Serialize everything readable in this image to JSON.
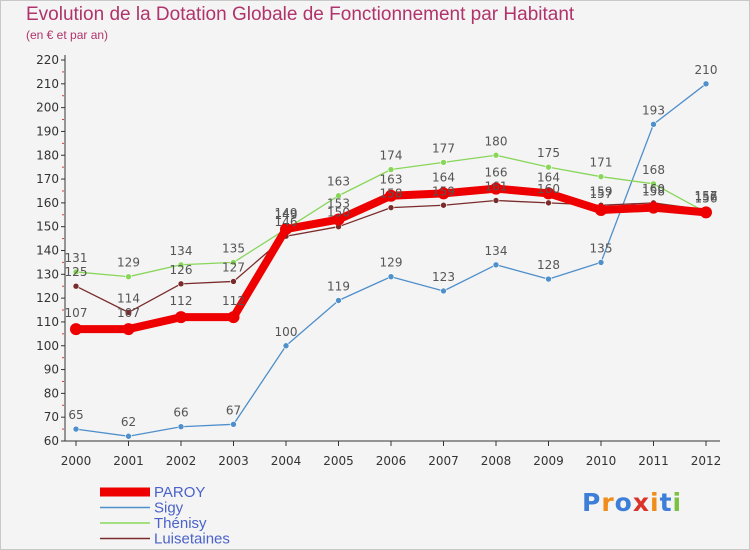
{
  "chart_data": {
    "type": "line",
    "title": "Evolution de la Dotation Globale de Fonctionnement par Habitant",
    "subtitle": "(en € et par an)",
    "xlabel": "",
    "ylabel": "",
    "x": [
      "2000",
      "2001",
      "2002",
      "2003",
      "2004",
      "2005",
      "2006",
      "2007",
      "2008",
      "2009",
      "2010",
      "2011",
      "2012"
    ],
    "yticks": [
      60,
      70,
      80,
      90,
      100,
      110,
      120,
      130,
      140,
      150,
      160,
      170,
      180,
      190,
      200,
      210,
      220
    ],
    "ylim": [
      60,
      220
    ],
    "grid": false,
    "legend_position": "bottom-left",
    "series": [
      {
        "name": "Sigy",
        "color": "#4f8fca",
        "values": [
          65,
          62,
          66,
          67,
          100,
          119,
          129,
          123,
          134,
          128,
          135,
          193,
          210
        ],
        "labels": [
          "65",
          "62",
          "66",
          "67",
          "100",
          "119",
          "129",
          "123",
          "134",
          "128",
          "135",
          "193",
          "210"
        ]
      },
      {
        "name": "Thénisy",
        "color": "#88d65a",
        "values": [
          131,
          129,
          134,
          135,
          149,
          163,
          174,
          177,
          180,
          175,
          171,
          168,
          156
        ],
        "labels": [
          "131",
          "129",
          "134",
          "135",
          "149",
          "163",
          "174",
          "177",
          "180",
          "175",
          "171",
          "168",
          "156"
        ]
      },
      {
        "name": "Luisetaines",
        "color": "#7a2b2b",
        "values": [
          125,
          114,
          126,
          127,
          146,
          150,
          158,
          159,
          161,
          160,
          159,
          160,
          157
        ],
        "labels": [
          "125",
          "114",
          "126",
          "127",
          "146",
          "150",
          "158",
          "159",
          "161",
          "160",
          "159",
          "160",
          "157"
        ]
      },
      {
        "name": "PAROY",
        "color": "#ee0000",
        "values": [
          107,
          107,
          112,
          112,
          149,
          153,
          163,
          164,
          166,
          164,
          157,
          158,
          156
        ],
        "labels": [
          "107",
          "107",
          "112",
          "112",
          "149",
          "153",
          "163",
          "164",
          "166",
          "164",
          "157",
          "158",
          "156"
        ]
      }
    ],
    "legend_order": [
      "PAROY",
      "Sigy",
      "Thénisy",
      "Luisetaines"
    ]
  },
  "logo": {
    "letters": [
      "P",
      "r",
      "o",
      "x",
      "i",
      "t",
      "i"
    ],
    "colors": [
      "#3d7fd8",
      "#f08c1a",
      "#3d7fd8",
      "#d8342c",
      "#f08c1a",
      "#3d7fd8",
      "#7bc143"
    ]
  }
}
